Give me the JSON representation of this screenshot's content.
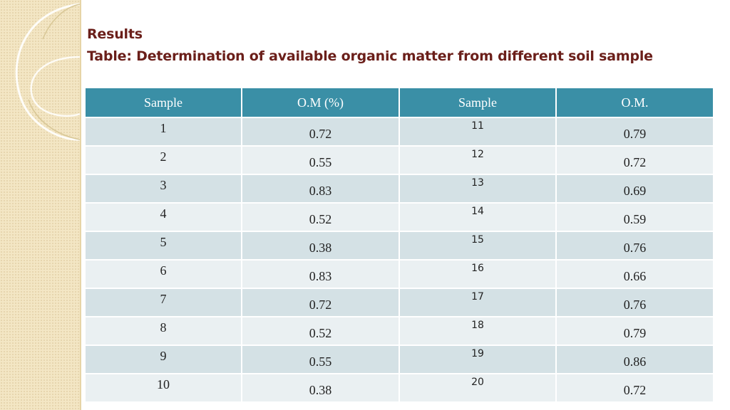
{
  "title": {
    "line1": "Results",
    "line2": "Table: Determination of available organic matter from different soil sample"
  },
  "table": {
    "headers": [
      "Sample",
      "O.M (%)",
      "Sample",
      "O.M."
    ],
    "rows": [
      {
        "s1": "1",
        "om1": "0.72",
        "s2": "11",
        "om2": "0.79"
      },
      {
        "s1": "2",
        "om1": "0.55",
        "s2": "12",
        "om2": "0.72"
      },
      {
        "s1": "3",
        "om1": "0.83",
        "s2": "13",
        "om2": "0.69"
      },
      {
        "s1": "4",
        "om1": "0.52",
        "s2": "14",
        "om2": "0.59"
      },
      {
        "s1": "5",
        "om1": "0.38",
        "s2": "15",
        "om2": "0.76"
      },
      {
        "s1": "6",
        "om1": "0.83",
        "s2": "16",
        "om2": "0.66"
      },
      {
        "s1": "7",
        "om1": "0.72",
        "s2": "17",
        "om2": "0.76"
      },
      {
        "s1": "8",
        "om1": "0.52",
        "s2": "18",
        "om2": "0.79"
      },
      {
        "s1": "9",
        "om1": "0.55",
        "s2": "19",
        "om2": "0.86"
      },
      {
        "s1": "10",
        "om1": "0.38",
        "s2": "20",
        "om2": "0.72"
      }
    ]
  },
  "colors": {
    "header_bg": "#3a8fa6",
    "row_odd": "#d4e1e5",
    "row_even": "#eaf0f2",
    "title": "#6b1f1a",
    "side_band": "#f3e6c4"
  }
}
